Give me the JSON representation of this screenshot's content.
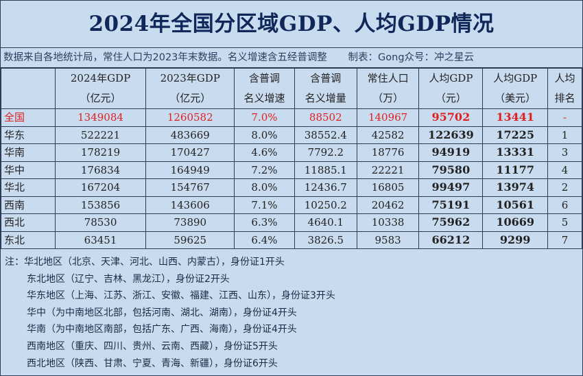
{
  "title": "2024年全国分区域GDP、人均GDP情况",
  "source_note": "数据来自各地统计局，常住人口为2023年末数据。名义增速含五经普调整",
  "credit": "制表：Gong众号：冲之星云",
  "headers": [
    [
      "",
      ""
    ],
    [
      "2024年GDP",
      "（亿元）"
    ],
    [
      "2023年GDP",
      "（亿元）"
    ],
    [
      "含普调",
      "名义增速"
    ],
    [
      "含普调",
      "名义增量"
    ],
    [
      "常住人口",
      "（万）"
    ],
    [
      "人均GDP",
      "（元）"
    ],
    [
      "人均GDP",
      "（美元）"
    ],
    [
      "人均",
      "排名"
    ]
  ],
  "rows": [
    [
      "全国",
      "1349084",
      "1260582",
      "7.0%",
      "88502",
      "140967",
      "95702",
      "13441",
      "-"
    ],
    [
      "华东",
      "522221",
      "483669",
      "8.0%",
      "38552.4",
      "42582",
      "122639",
      "17225",
      "1"
    ],
    [
      "华南",
      "178219",
      "170427",
      "4.6%",
      "7792.2",
      "18776",
      "94919",
      "13331",
      "3"
    ],
    [
      "华中",
      "176834",
      "164949",
      "7.2%",
      "11885.1",
      "22221",
      "79580",
      "11177",
      "4"
    ],
    [
      "华北",
      "167204",
      "154767",
      "8.0%",
      "12436.7",
      "16805",
      "99497",
      "13974",
      "2"
    ],
    [
      "西南",
      "153856",
      "143606",
      "7.1%",
      "10250.2",
      "20462",
      "75191",
      "10561",
      "6"
    ],
    [
      "西北",
      "78530",
      "73890",
      "6.3%",
      "4640.1",
      "10338",
      "75962",
      "10669",
      "5"
    ],
    [
      "东北",
      "63451",
      "59625",
      "6.4%",
      "3826.5",
      "9583",
      "66212",
      "9299",
      "7"
    ]
  ],
  "notes": [
    "注：华北地区（北京、天津、河北、山西、内蒙古），身份证1开头",
    "东北地区（辽宁、吉林、黑龙江），身份证2开头",
    "华东地区（上海、江苏、浙江、安徽、福建、江西、山东），身份证3开头",
    "华中（为中南地区北部，包括河南、湖北、湖南），身份证4开头",
    "华南（为中南地区南部，包括广东、广西、海南），身份证4开头",
    "西南地区（重庆、四川、贵州、云南、西藏），身份证5开头",
    "西北地区（陕西、甘肃、宁夏、青海、新疆），身份证6开头"
  ],
  "colors": {
    "background": "#c9dcef",
    "title": "#10275a",
    "highlight_red": "#e02020",
    "border": "#2d3b55"
  }
}
